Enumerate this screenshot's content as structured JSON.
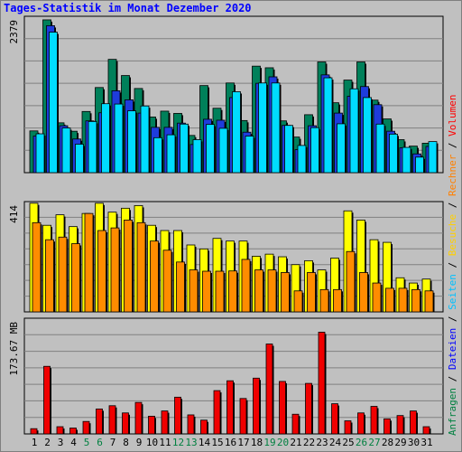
{
  "chart_data": {
    "type": "bar",
    "title": "Tages-Statistik im Monat Dezember 2020",
    "categories": [
      "1",
      "2",
      "3",
      "4",
      "5",
      "6",
      "7",
      "8",
      "9",
      "10",
      "11",
      "12",
      "13",
      "14",
      "15",
      "16",
      "17",
      "18",
      "19",
      "20",
      "21",
      "22",
      "23",
      "24",
      "25",
      "26",
      "27",
      "28",
      "29",
      "30",
      "31"
    ],
    "category_colors": [
      "#000000",
      "#000000",
      "#000000",
      "#000000",
      "#008040",
      "#008040",
      "#000000",
      "#000000",
      "#000000",
      "#000000",
      "#000000",
      "#008040",
      "#008040",
      "#000000",
      "#000000",
      "#000000",
      "#000000",
      "#000000",
      "#008040",
      "#008040",
      "#000000",
      "#000000",
      "#000000",
      "#000000",
      "#000000",
      "#008040",
      "#008040",
      "#000000",
      "#000000",
      "#000000",
      "#000000"
    ],
    "legend": {
      "right_top": [
        {
          "text": "Anfragen",
          "color": "#008040"
        },
        {
          "text": " / ",
          "color": "#000000"
        },
        {
          "text": "Dateien",
          "color": "#0000ff"
        },
        {
          "text": " / ",
          "color": "#000000"
        },
        {
          "text": "Seiten",
          "color": "#00c0ff"
        },
        {
          "text": " / ",
          "color": "#000000"
        },
        {
          "text": "Besuche",
          "color": "#ffd000"
        },
        {
          "text": " / ",
          "color": "#000000"
        },
        {
          "text": "Rechner",
          "color": "#ff8000"
        },
        {
          "text": " / ",
          "color": "#000000"
        },
        {
          "text": "Volumen",
          "color": "#ff0000"
        }
      ]
    },
    "panels": [
      {
        "axis_max_label": "2379",
        "ymax": 2379,
        "series": [
          {
            "name": "Anfragen",
            "color": "#00805a",
            "values": [
              645,
              2360,
              770,
              640,
              945,
              1315,
              1750,
              1500,
              1300,
              860,
              950,
              915,
              575,
              1345,
              995,
              1385,
              805,
              1645,
              1620,
              800,
              550,
              895,
              1710,
              1080,
              1430,
              1710,
              1120,
              830,
              510,
              410,
              455
            ]
          },
          {
            "name": "Dateien",
            "color": "#1e3cdc",
            "values": [
              565,
              2270,
              725,
              520,
              800,
              925,
              1265,
              1125,
              920,
              700,
              700,
              765,
              435,
              825,
              810,
              1160,
              625,
              1380,
              1480,
              730,
              355,
              725,
              1510,
              920,
              1180,
              1330,
              1050,
              640,
              385,
              290,
              405
            ]
          },
          {
            "name": "Seiten",
            "color": "#00dcff",
            "values": [
              600,
              2170,
              690,
              440,
              790,
              1065,
              1060,
              955,
              1030,
              540,
              585,
              750,
              510,
              745,
              685,
              1250,
              565,
              1385,
              1385,
              730,
              420,
              695,
              1465,
              755,
              1295,
              1160,
              750,
              595,
              390,
              240,
              480
            ]
          }
        ]
      },
      {
        "axis_max_label": "414",
        "ymax": 414,
        "series": [
          {
            "name": "Besuche",
            "color": "#ffff00",
            "values": [
              414,
              330,
              370,
              325,
              375,
              414,
              380,
              395,
              405,
              330,
              310,
              310,
              255,
              240,
              280,
              270,
              270,
              212,
              220,
              210,
              180,
              195,
              160,
              205,
              385,
              350,
              275,
              265,
              130,
              110,
              125
            ]
          },
          {
            "name": "Rechner",
            "color": "#ff8c00",
            "values": [
              340,
              275,
              285,
              260,
              375,
              310,
              320,
              350,
              340,
              270,
              235,
              190,
              160,
              155,
              155,
              156,
              200,
              160,
              160,
              150,
              80,
              150,
              85,
              85,
              230,
              150,
              110,
              90,
              90,
              85,
              80
            ]
          }
        ]
      },
      {
        "axis_max_label": "173.67 MB",
        "ymax": 173.67,
        "series": [
          {
            "name": "Volumen",
            "color": "#f00000",
            "values": [
              8,
              103,
              11,
              9,
              19,
              38,
              43,
              32,
              48,
              27,
              35,
              56,
              29,
              21,
              66,
              81,
              54,
              85,
              137,
              80,
              30,
              77,
              155,
              46,
              20,
              32,
              42,
              23,
              28,
              35,
              11
            ]
          }
        ]
      }
    ]
  }
}
